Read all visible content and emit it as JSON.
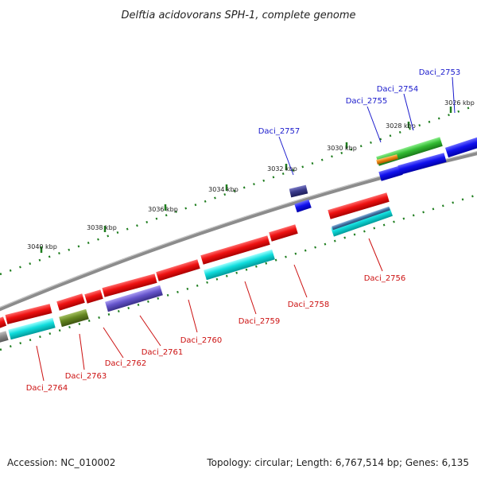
{
  "title": "Delftia acidovorans SPH-1, complete genome",
  "footer": {
    "accession": "Accession: NC_010002",
    "summary": "Topology: circular; Length: 6,767,514 bp; Genes: 6,135"
  },
  "ticks": [
    "3026 kbp",
    "3028 kbp",
    "3030 kbp",
    "3032 kbp",
    "3034 kbp",
    "3036 kbp",
    "3038 kbp",
    "3040 kbp"
  ],
  "genes_forward": [
    "Daci_2753",
    "Daci_2754",
    "Daci_2755",
    "Daci_2757"
  ],
  "genes_reverse": [
    "Daci_2756",
    "Daci_2758",
    "Daci_2759",
    "Daci_2760",
    "Daci_2761",
    "Daci_2762",
    "Daci_2763",
    "Daci_2764"
  ],
  "colors": {
    "forward_label": "#1a1acc",
    "reverse_label": "#cc1111",
    "backbone": "#8a8a8a",
    "tick": "#1e7d1e",
    "gene_red": "#ee1111",
    "gene_blue": "#1111ee",
    "gene_cyan": "#11dddd",
    "gene_green": "#33bb33",
    "gene_orange": "#ee8811",
    "gene_navy": "#3a3a8a",
    "gene_lavender": "#6655cc",
    "gene_olive": "#668822",
    "gene_steel": "#4477aa"
  }
}
